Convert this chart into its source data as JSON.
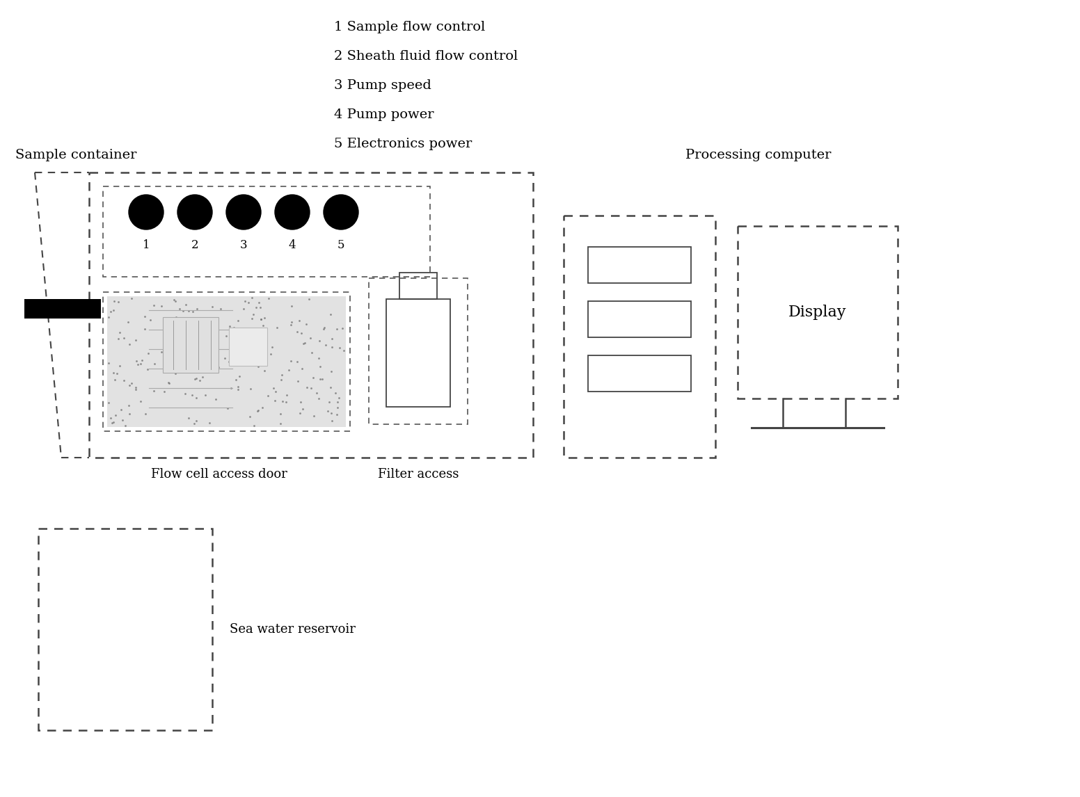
{
  "bg_color": "#ffffff",
  "text_color": "#000000",
  "legend_lines": [
    "1 Sample flow control",
    "2 Sheath fluid flow control",
    "3 Pump speed",
    "4 Pump power",
    "5 Electronics power"
  ],
  "sample_container_label": "Sample container",
  "flow_cell_label": "Flow cell access door",
  "filter_label": "Filter access",
  "processing_label": "Processing computer",
  "sea_water_label": "Sea water reservoir",
  "display_label": "Display",
  "knob_labels": [
    "1",
    "2",
    "3",
    "4",
    "5"
  ]
}
